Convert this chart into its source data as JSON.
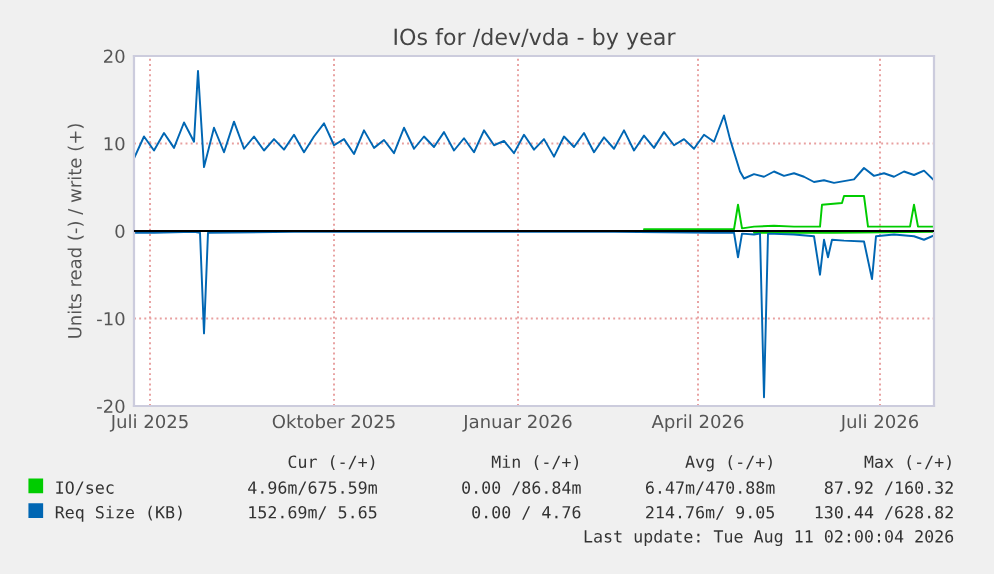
{
  "chart_data": {
    "type": "line",
    "title": "IOs for /dev/vda - by year",
    "ylabel": "Units read (-) / write (+)",
    "xlim": [
      "2025-07-07",
      "2026-08-11"
    ],
    "ylim": [
      -20,
      20
    ],
    "yticks": [
      -20,
      -10,
      0,
      10,
      20
    ],
    "xticks": [
      {
        "value": "2025-07-15",
        "label": "Juli 2025"
      },
      {
        "value": "2025-10-15",
        "label": "Oktober 2025"
      },
      {
        "value": "2026-01-15",
        "label": "Januar 2026"
      },
      {
        "value": "2026-04-15",
        "label": "April 2026"
      },
      {
        "value": "2026-07-15",
        "label": "Juli 2026"
      }
    ],
    "grid": true,
    "legend": "bottom",
    "ref_lines": [
      {
        "axis": "y",
        "value": 0,
        "color": "#000000"
      }
    ],
    "series": [
      {
        "name": "IO/sec",
        "color": "#00cc00",
        "x": [
          "2026-03-19",
          "2026-05-03",
          "2026-05-05",
          "2026-05-07",
          "2026-05-13",
          "2026-05-23",
          "2026-06-02",
          "2026-06-15",
          "2026-06-16",
          "2026-06-26",
          "2026-06-27",
          "2026-07-07",
          "2026-07-09",
          "2026-07-22",
          "2026-07-30",
          "2026-08-01",
          "2026-08-03",
          "2026-08-11"
        ],
        "values": [
          0.2,
          0.2,
          3.0,
          0.3,
          0.5,
          0.6,
          0.5,
          0.5,
          3.0,
          3.2,
          4.0,
          4.0,
          0.5,
          0.5,
          0.5,
          3.0,
          0.5,
          0.5
        ]
      },
      {
        "color": "#00cc00",
        "x": [
          "2026-05-13",
          "2026-06-22",
          "2026-08-11"
        ],
        "values": [
          -0.2,
          -0.2,
          -0.1
        ]
      },
      {
        "name": "Req Size (KB)",
        "color": "#0066b3",
        "x": [
          "2025-07-07",
          "2025-07-12",
          "2025-07-17",
          "2025-07-22",
          "2025-07-27",
          "2025-08-01",
          "2025-08-06",
          "2025-08-08",
          "2025-08-11",
          "2025-08-16",
          "2025-08-21",
          "2025-08-26",
          "2025-08-31",
          "2025-09-05",
          "2025-09-10",
          "2025-09-15",
          "2025-09-20",
          "2025-09-25",
          "2025-09-30",
          "2025-10-05",
          "2025-10-10",
          "2025-10-15",
          "2025-10-20",
          "2025-10-25",
          "2025-10-30",
          "2025-11-04",
          "2025-11-09",
          "2025-11-14",
          "2025-11-19",
          "2025-11-24",
          "2025-11-29",
          "2025-12-04",
          "2025-12-09",
          "2025-12-14",
          "2025-12-19",
          "2025-12-24",
          "2025-12-29",
          "2026-01-03",
          "2026-01-08",
          "2026-01-13",
          "2026-01-18",
          "2026-01-23",
          "2026-01-28",
          "2026-02-02",
          "2026-02-07",
          "2026-02-12",
          "2026-02-17",
          "2026-02-22",
          "2026-02-27",
          "2026-03-04",
          "2026-03-09",
          "2026-03-14",
          "2026-03-19",
          "2026-03-24",
          "2026-03-29",
          "2026-04-03",
          "2026-04-08",
          "2026-04-13",
          "2026-04-18",
          "2026-04-23",
          "2026-04-28",
          "2026-05-01",
          "2026-05-06",
          "2026-05-08",
          "2026-05-13",
          "2026-05-18",
          "2026-05-23",
          "2026-05-28",
          "2026-06-02",
          "2026-06-07",
          "2026-06-12",
          "2026-06-17",
          "2026-06-22",
          "2026-06-27",
          "2026-07-02",
          "2026-07-07",
          "2026-07-12",
          "2026-07-17",
          "2026-07-22",
          "2026-07-27",
          "2026-08-01",
          "2026-08-06",
          "2026-08-11"
        ],
        "values": [
          8.3,
          10.8,
          9.2,
          11.2,
          9.5,
          12.4,
          10.2,
          18.3,
          7.3,
          11.8,
          9.0,
          12.5,
          9.4,
          10.8,
          9.2,
          10.5,
          9.3,
          11.0,
          9.0,
          10.8,
          12.3,
          9.8,
          10.5,
          8.8,
          11.5,
          9.5,
          10.4,
          8.9,
          11.8,
          9.4,
          10.8,
          9.6,
          11.3,
          9.2,
          10.6,
          9.0,
          11.5,
          9.8,
          10.3,
          8.9,
          11.0,
          9.3,
          10.5,
          8.5,
          10.8,
          9.6,
          11.2,
          9.0,
          10.7,
          9.4,
          11.5,
          9.2,
          10.9,
          9.5,
          11.3,
          9.8,
          10.5,
          9.4,
          11.0,
          10.2,
          13.2,
          10.5,
          6.8,
          6.0,
          6.5,
          6.2,
          6.8,
          6.3,
          6.6,
          6.2,
          5.6,
          5.8,
          5.5,
          5.7,
          5.9,
          7.2,
          6.3,
          6.6,
          6.2,
          6.8,
          6.4,
          6.9,
          5.8
        ]
      },
      {
        "color": "#0066b3",
        "x": [
          "2025-07-07",
          "2025-07-17",
          "2025-08-06",
          "2025-08-09",
          "2025-08-11",
          "2025-08-13",
          "2025-09-25",
          "2026-01-03",
          "2026-03-04",
          "2026-04-23",
          "2026-05-03",
          "2026-05-05",
          "2026-05-07",
          "2026-05-13",
          "2026-05-16",
          "2026-05-18",
          "2026-05-20",
          "2026-06-02",
          "2026-06-12",
          "2026-06-15",
          "2026-06-17",
          "2026-06-19",
          "2026-06-21",
          "2026-06-27",
          "2026-07-07",
          "2026-07-11",
          "2026-07-13",
          "2026-07-22",
          "2026-08-01",
          "2026-08-06",
          "2026-08-11"
        ],
        "values": [
          -0.2,
          -0.2,
          -0.1,
          -0.2,
          -11.7,
          -0.2,
          -0.1,
          -0.1,
          -0.1,
          -0.2,
          -0.2,
          -3.0,
          -0.3,
          -0.4,
          -0.3,
          -19.0,
          -0.3,
          -0.4,
          -0.6,
          -5.0,
          -1.0,
          -3.0,
          -1.0,
          -1.1,
          -1.2,
          -5.5,
          -0.6,
          -0.4,
          -0.6,
          -1.0,
          -0.5
        ]
      }
    ],
    "annotations": [
      "Cur (-/+)",
      "Min (-/+)",
      "Avg (-/+)",
      "Max (-/+)",
      "4.96m/675.59m",
      "0.00 /86.84m",
      "6.47m/470.88m",
      "87.92 /160.32",
      "152.69m/ 5.65",
      "0.00 / 4.76",
      "214.76m/ 9.05",
      "130.44 /628.82",
      "Last update: Tue Aug 11 02:00:04 2026"
    ]
  }
}
